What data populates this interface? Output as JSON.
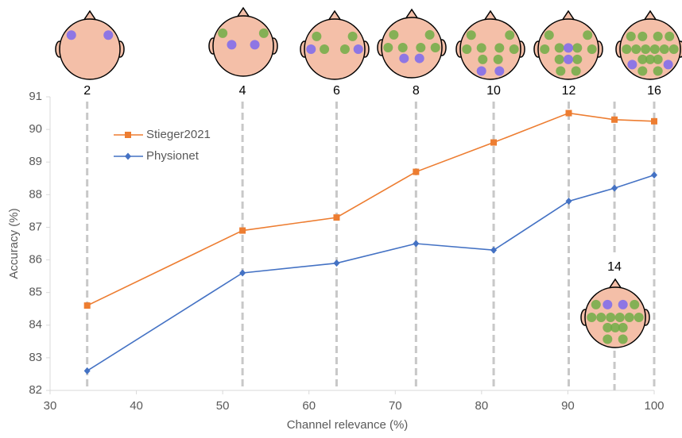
{
  "chart_data": {
    "type": "line",
    "x": [
      34.3,
      52.3,
      63.2,
      72.4,
      81.4,
      90.1,
      95.4,
      100
    ],
    "series": [
      {
        "name": "Stieger2021",
        "color": "#ed7d31",
        "marker": "square",
        "values": [
          84.6,
          86.9,
          87.3,
          88.7,
          89.6,
          90.5,
          90.3,
          90.25
        ]
      },
      {
        "name": "Physionet",
        "color": "#4472c4",
        "marker": "diamond",
        "values": [
          82.6,
          85.6,
          85.9,
          86.5,
          86.3,
          87.8,
          88.2,
          88.6
        ]
      }
    ],
    "channel_labels": [
      "2",
      "4",
      "6",
      "8",
      "10",
      "12",
      "14",
      "16"
    ],
    "xlabel": "Channel relevance (%)",
    "ylabel": "Accuracy (%)",
    "xlim": [
      30,
      100
    ],
    "xticks": [
      30,
      40,
      50,
      60,
      70,
      80,
      90,
      100
    ],
    "ylim": [
      82,
      91
    ],
    "yticks": [
      82,
      83,
      84,
      85,
      86,
      87,
      88,
      89,
      90,
      91
    ]
  }
}
